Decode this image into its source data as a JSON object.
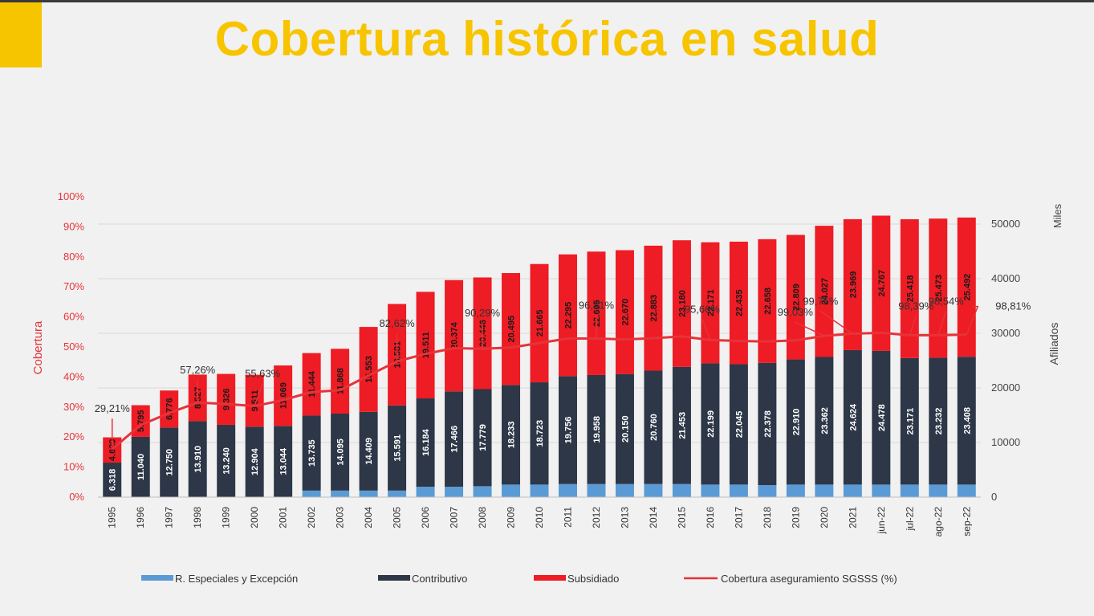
{
  "title": "Cobertura histórica en salud",
  "colors": {
    "especiales": "#5b9bd5",
    "contributivo": "#2d3748",
    "subsidiado": "#ee1c25",
    "cobertura": "#e63339",
    "title": "#f7c400",
    "accent": "#f7c400"
  },
  "chart_data": {
    "type": "bar",
    "stacked": true,
    "title": "",
    "left_axis": {
      "label": "Cobertura",
      "ticks": [
        "0%",
        "10%",
        "20%",
        "30%",
        "40%",
        "50%",
        "60%",
        "70%",
        "80%",
        "90%",
        "100%"
      ],
      "range": [
        0,
        100
      ]
    },
    "right_axis": {
      "label": "Afiliados",
      "unit": "Miles",
      "ticks": [
        "0",
        "10000",
        "20000",
        "30000",
        "40000",
        "50000"
      ],
      "range": [
        0,
        55000
      ]
    },
    "categories": [
      "1995",
      "1996",
      "1997",
      "1998",
      "1999",
      "2000",
      "2001",
      "2002",
      "2003",
      "2004",
      "2005",
      "2006",
      "2007",
      "2008",
      "2009",
      "2010",
      "2011",
      "2012",
      "2013",
      "2014",
      "2015",
      "2016",
      "2017",
      "2018",
      "2019",
      "2020",
      "2021",
      "jun-22",
      "jul-22",
      "ago-22",
      "sep-22"
    ],
    "series": [
      {
        "name": "R. Especiales y Excepción",
        "key": "especiales",
        "values": [
          0,
          0,
          0,
          0,
          0,
          0,
          0,
          1200,
          1200,
          1200,
          1200,
          1900,
          1900,
          2000,
          2300,
          2300,
          2400,
          2400,
          2400,
          2400,
          2400,
          2300,
          2300,
          2200,
          2300,
          2300,
          2300,
          2300,
          2300,
          2300,
          2300
        ]
      },
      {
        "name": "Contributivo",
        "key": "contributivo",
        "values": [
          6318,
          11040,
          12750,
          13910,
          13240,
          12904,
          13044,
          13735,
          14095,
          14409,
          15591,
          16184,
          17466,
          17779,
          18233,
          18723,
          19756,
          19958,
          20150,
          20760,
          21453,
          22199,
          22045,
          22378,
          22910,
          23362,
          24624,
          24478,
          23171,
          23232,
          23408
        ],
        "labels": [
          "6.318",
          "11.040",
          "12.750",
          "13.910",
          "13.240",
          "12.904",
          "13.044",
          "13.735",
          "14.095",
          "14.409",
          "15.591",
          "16.184",
          "17.466",
          "17.779",
          "18.233",
          "18.723",
          "19.756",
          "19.958",
          "20.150",
          "20.760",
          "21.453",
          "22.199",
          "22.045",
          "22.378",
          "22.910",
          "23.362",
          "24.624",
          "24.478",
          "23.171",
          "23.232",
          "23.408"
        ]
      },
      {
        "name": "Subsidiado",
        "key": "subsidiado",
        "values": [
          4629,
          5795,
          6776,
          8527,
          9326,
          9511,
          11069,
          11444,
          11868,
          15553,
          18581,
          19511,
          20374,
          20446,
          20495,
          21665,
          22295,
          22605,
          22670,
          22883,
          23180,
          22171,
          22435,
          22658,
          22809,
          24027,
          23969,
          24767,
          25418,
          25473,
          25492
        ],
        "labels": [
          "4.629",
          "5.795",
          "6.776",
          "8.527",
          "9.326",
          "9.511",
          "11.069",
          "11.444",
          "11.868",
          "15.553",
          "18.581",
          "19.511",
          "20.374",
          "20.446",
          "20.495",
          "21.665",
          "22.295",
          "22.605",
          "22.670",
          "22.883",
          "23.180",
          "22.171",
          "22.435",
          "22.658",
          "22.809",
          "24.027",
          "23.969",
          "24.767",
          "25.418",
          "25.473",
          "25.492"
        ]
      },
      {
        "name": "Cobertura aseguramiento SGSSS (%)",
        "key": "cobertura",
        "axis": "left",
        "type": "line",
        "values": [
          16,
          24,
          28,
          31.5,
          31,
          30.3,
          32.3,
          35,
          35.6,
          40.5,
          45.2,
          47.7,
          49.6,
          49.4,
          49.8,
          51.3,
          52.8,
          52.8,
          52.5,
          52.9,
          53.5,
          52.3,
          52,
          51.8,
          52.2,
          53.7,
          54.4,
          54.7,
          53.9,
          53.9,
          54.1
        ]
      }
    ],
    "annotations": [
      {
        "category": "1995",
        "label": "29,21%"
      },
      {
        "category": "1998",
        "label": "57,26%"
      },
      {
        "category": "2000",
        "label": "55,63%"
      },
      {
        "category": "2005",
        "label": "82,62%"
      },
      {
        "category": "2008",
        "label": "90,29%"
      },
      {
        "category": "2012",
        "label": "96,41%"
      },
      {
        "category": "2016",
        "label": "95,66%"
      },
      {
        "category": "2020",
        "label": "99,03%"
      },
      {
        "category": "2021",
        "label": "99,75%"
      },
      {
        "category": "jul-22",
        "label": "98,39%"
      },
      {
        "category": "ago-22",
        "label": "98,54%"
      },
      {
        "category": "sep-22",
        "label": "98,81%"
      }
    ],
    "legend_position": "bottom",
    "grid": true
  }
}
